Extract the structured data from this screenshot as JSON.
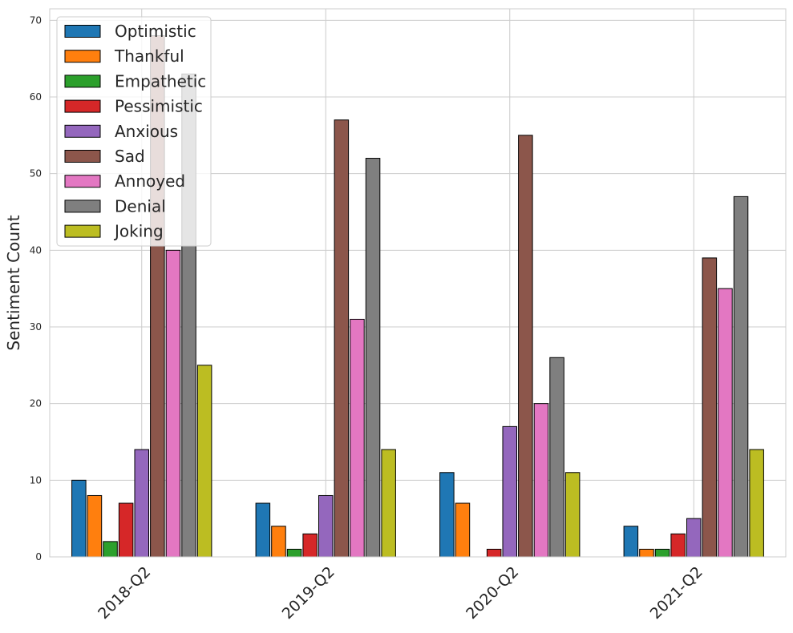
{
  "chart_data": {
    "type": "bar",
    "title": "",
    "xlabel": "",
    "ylabel": "Sentiment Count",
    "ylim": [
      0,
      71.5
    ],
    "yticks": [
      0,
      10,
      20,
      30,
      40,
      50,
      60,
      70
    ],
    "grid": true,
    "legend_position": "top-left",
    "categories": [
      "2018-Q2",
      "2019-Q2",
      "2020-Q2",
      "2021-Q2"
    ],
    "series": [
      {
        "name": "Optimistic",
        "color": "#1f77b4",
        "values": [
          10,
          7,
          11,
          4
        ]
      },
      {
        "name": "Thankful",
        "color": "#ff7f0e",
        "values": [
          8,
          4,
          7,
          1
        ]
      },
      {
        "name": "Empathetic",
        "color": "#2ca02c",
        "values": [
          2,
          1,
          0,
          1
        ]
      },
      {
        "name": "Pessimistic",
        "color": "#d62728",
        "values": [
          7,
          3,
          1,
          3
        ]
      },
      {
        "name": "Anxious",
        "color": "#9467bd",
        "values": [
          14,
          8,
          17,
          5
        ]
      },
      {
        "name": "Sad",
        "color": "#8c564b",
        "values": [
          68,
          57,
          55,
          39
        ]
      },
      {
        "name": "Annoyed",
        "color": "#e377c2",
        "values": [
          40,
          31,
          20,
          35
        ]
      },
      {
        "name": "Denial",
        "color": "#7f7f7f",
        "values": [
          63,
          52,
          26,
          47
        ]
      },
      {
        "name": "Joking",
        "color": "#bcbd22",
        "values": [
          25,
          14,
          11,
          14
        ]
      }
    ]
  }
}
